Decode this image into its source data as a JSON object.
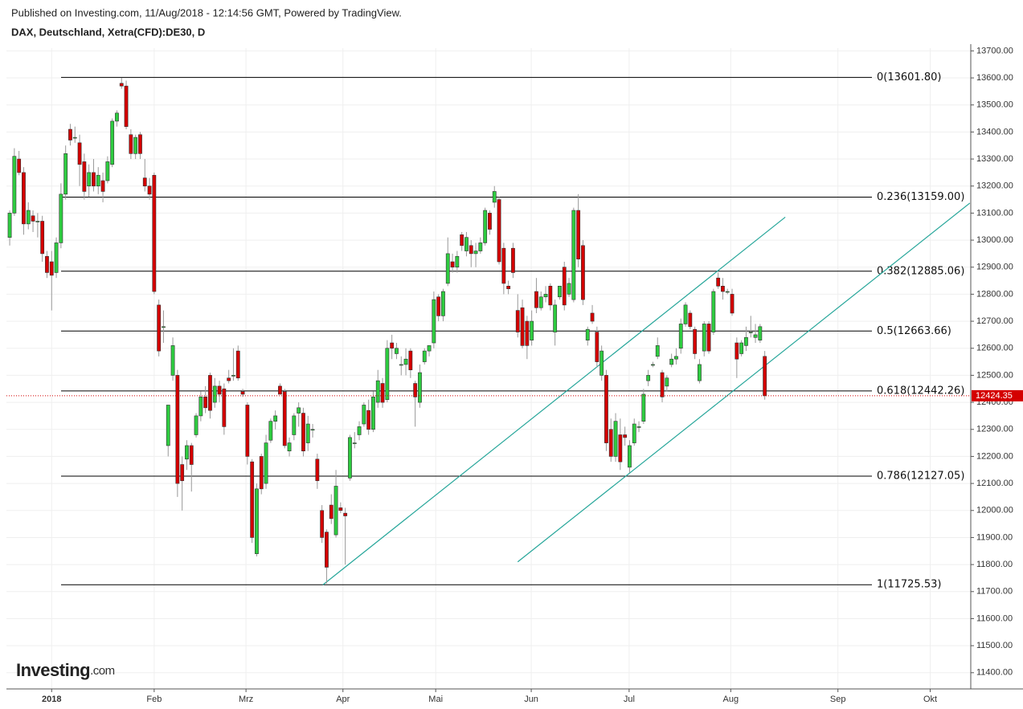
{
  "header": {
    "published": "Published on Investing.com, 11/Aug/2018 - 12:14:56 GMT, Powered by TradingView.",
    "symbol": "DAX, Deutschland, Xetra(CFD):DE30, D"
  },
  "logo": {
    "name": "Investing",
    "suffix": ".com"
  },
  "chart_data": {
    "type": "candlestick",
    "up_color": "#2ecc40",
    "down_color": "#d40000",
    "grid": true,
    "ylim": [
      11340,
      13710
    ],
    "xlim": [
      -0.7,
      206.2
    ],
    "yticks": [
      {
        "value": 11400,
        "label": "11400.00"
      },
      {
        "value": 11500,
        "label": "11500.00"
      },
      {
        "value": 11600,
        "label": "11600.00"
      },
      {
        "value": 11700,
        "label": "11700.00"
      },
      {
        "value": 11800,
        "label": "11800.00"
      },
      {
        "value": 11900,
        "label": "11900.00"
      },
      {
        "value": 12000,
        "label": "12000.00"
      },
      {
        "value": 12100,
        "label": "12100.00"
      },
      {
        "value": 12200,
        "label": "12200.00"
      },
      {
        "value": 12300,
        "label": "12300.00"
      },
      {
        "value": 12400,
        "label": "12400.00"
      },
      {
        "value": 12500,
        "label": "12500.00"
      },
      {
        "value": 12600,
        "label": "12600.00"
      },
      {
        "value": 12700,
        "label": "12700.00"
      },
      {
        "value": 12800,
        "label": "12800.00"
      },
      {
        "value": 12900,
        "label": "12900.00"
      },
      {
        "value": 13000,
        "label": "13000.00"
      },
      {
        "value": 13100,
        "label": "13100.00"
      },
      {
        "value": 13200,
        "label": "13200.00"
      },
      {
        "value": 13300,
        "label": "13300.00"
      },
      {
        "value": 13400,
        "label": "13400.00"
      },
      {
        "value": 13500,
        "label": "13500.00"
      },
      {
        "value": 13600,
        "label": "13600.00"
      },
      {
        "value": 13700,
        "label": "13700.00"
      }
    ],
    "xticks": [
      {
        "value": 9,
        "label": "2018"
      },
      {
        "value": 31,
        "label": "Feb"
      },
      {
        "value": 50.7,
        "label": "Mrz"
      },
      {
        "value": 71.5,
        "label": "Apr"
      },
      {
        "value": 91.4,
        "label": "Mai"
      },
      {
        "value": 111.9,
        "label": "Jun"
      },
      {
        "value": 132.9,
        "label": "Jul"
      },
      {
        "value": 154.7,
        "label": "Aug"
      },
      {
        "value": 177.7,
        "label": "Sep"
      },
      {
        "value": 197.5,
        "label": "Okt"
      }
    ],
    "fib_levels": [
      {
        "value": 13601.8,
        "label": "0(13601.80)"
      },
      {
        "value": 13159.0,
        "label": "0.236(13159.00)"
      },
      {
        "value": 12885.06,
        "label": "0.382(12885.06)"
      },
      {
        "value": 12663.66,
        "label": "0.5(12663.66)"
      },
      {
        "value": 12442.26,
        "label": "0.618(12442.26)"
      },
      {
        "value": 12127.05,
        "label": "0.786(12127.05)"
      },
      {
        "value": 11725.53,
        "label": "1(11725.53)"
      }
    ],
    "trend_lines": [
      {
        "x": [
          67.2,
          166.4
        ],
        "y": [
          11725,
          13085
        ]
      },
      {
        "x": [
          109,
          206
        ],
        "y": [
          11810,
          13137
        ]
      }
    ],
    "last_price": 12424.35,
    "ohlc": [
      [
        13010,
        13110,
        12980,
        13100
      ],
      [
        13100,
        13340,
        13090,
        13310
      ],
      [
        13300,
        13330,
        13240,
        13250
      ],
      [
        13250,
        13270,
        13020,
        13060
      ],
      [
        13060,
        13140,
        13040,
        13110
      ],
      [
        13090,
        13110,
        13030,
        13070
      ],
      [
        13070,
        13100,
        13010,
        13070
      ],
      [
        13070,
        13090,
        12920,
        12950
      ],
      [
        12940,
        12960,
        12860,
        12880
      ],
      [
        12920,
        12960,
        12740,
        12870
      ],
      [
        12880,
        13010,
        12860,
        12990
      ],
      [
        12990,
        13210,
        12970,
        13170
      ],
      [
        13170,
        13350,
        13150,
        13320
      ],
      [
        13410,
        13430,
        13350,
        13370
      ],
      [
        13380,
        13420,
        13360,
        13380
      ],
      [
        13360,
        13390,
        13200,
        13280
      ],
      [
        13290,
        13320,
        13150,
        13180
      ],
      [
        13200,
        13280,
        13160,
        13250
      ],
      [
        13250,
        13300,
        13180,
        13200
      ],
      [
        13200,
        13270,
        13170,
        13240
      ],
      [
        13220,
        13250,
        13140,
        13180
      ],
      [
        13220,
        13310,
        13210,
        13290
      ],
      [
        13280,
        13450,
        13270,
        13440
      ],
      [
        13440,
        13480,
        13420,
        13470
      ],
      [
        13580,
        13600,
        13560,
        13570
      ],
      [
        13570,
        13590,
        13410,
        13420
      ],
      [
        13390,
        13410,
        13300,
        13320
      ],
      [
        13320,
        13390,
        13300,
        13380
      ],
      [
        13390,
        13400,
        13300,
        13320
      ],
      [
        13230,
        13300,
        13180,
        13200
      ],
      [
        13200,
        13230,
        13150,
        13170
      ],
      [
        13240,
        13250,
        12800,
        12810
      ],
      [
        12760,
        12780,
        12570,
        12590
      ],
      [
        12680,
        12740,
        12620,
        12680
      ],
      [
        12240,
        12390,
        12200,
        12390
      ],
      [
        12500,
        12640,
        12480,
        12610
      ],
      [
        12500,
        12520,
        12050,
        12100
      ],
      [
        12170,
        12200,
        12000,
        12110
      ],
      [
        12190,
        12260,
        12150,
        12240
      ],
      [
        12240,
        12250,
        12070,
        12170
      ],
      [
        12280,
        12360,
        12270,
        12350
      ],
      [
        12350,
        12440,
        12330,
        12420
      ],
      [
        12420,
        12460,
        12360,
        12380
      ],
      [
        12500,
        12510,
        12340,
        12370
      ],
      [
        12400,
        12490,
        12380,
        12460
      ],
      [
        12460,
        12480,
        12400,
        12430
      ],
      [
        12450,
        12470,
        12280,
        12310
      ],
      [
        12490,
        12520,
        12470,
        12480
      ],
      [
        12500,
        12600,
        12480,
        12500
      ],
      [
        12590,
        12610,
        12480,
        12490
      ],
      [
        12440,
        12450,
        12420,
        12430
      ],
      [
        12390,
        12400,
        12170,
        12200
      ],
      [
        12180,
        12190,
        11880,
        11900
      ],
      [
        11840,
        12100,
        11830,
        12080
      ],
      [
        12200,
        12210,
        12060,
        12080
      ],
      [
        12100,
        12280,
        12080,
        12250
      ],
      [
        12260,
        12340,
        12250,
        12330
      ],
      [
        12330,
        12370,
        12300,
        12350
      ],
      [
        12460,
        12470,
        12430,
        12430
      ],
      [
        12440,
        12450,
        12230,
        12240
      ],
      [
        12220,
        12270,
        12200,
        12250
      ],
      [
        12280,
        12360,
        12260,
        12350
      ],
      [
        12360,
        12400,
        12310,
        12380
      ],
      [
        12360,
        12380,
        12200,
        12220
      ],
      [
        12250,
        12350,
        12220,
        12320
      ],
      [
        12300,
        12320,
        12270,
        12300
      ],
      [
        12190,
        12210,
        12080,
        12110
      ],
      [
        12000,
        12020,
        11880,
        11900
      ],
      [
        11920,
        11930,
        11730,
        11790
      ],
      [
        12020,
        12060,
        11950,
        11970
      ],
      [
        11910,
        12150,
        11900,
        12090
      ],
      [
        12010,
        12030,
        11990,
        12000
      ],
      [
        11990,
        12010,
        11800,
        11980
      ],
      [
        12120,
        12280,
        12110,
        12270
      ],
      [
        12250,
        12290,
        12230,
        12250
      ],
      [
        12280,
        12330,
        12260,
        12310
      ],
      [
        12320,
        12400,
        12310,
        12390
      ],
      [
        12370,
        12410,
        12280,
        12300
      ],
      [
        12300,
        12440,
        12290,
        12420
      ],
      [
        12400,
        12520,
        12380,
        12480
      ],
      [
        12470,
        12490,
        12380,
        12400
      ],
      [
        12410,
        12630,
        12400,
        12600
      ],
      [
        12620,
        12650,
        12560,
        12600
      ],
      [
        12580,
        12620,
        12560,
        12600
      ],
      [
        12540,
        12570,
        12500,
        12540
      ],
      [
        12540,
        12600,
        12500,
        12560
      ],
      [
        12590,
        12600,
        12490,
        12520
      ],
      [
        12470,
        12480,
        12310,
        12420
      ],
      [
        12400,
        12540,
        12380,
        12510
      ],
      [
        12550,
        12600,
        12540,
        12590
      ],
      [
        12590,
        12610,
        12570,
        12610
      ],
      [
        12620,
        12810,
        12600,
        12780
      ],
      [
        12790,
        12800,
        12700,
        12720
      ],
      [
        12720,
        12820,
        12700,
        12810
      ],
      [
        12840,
        13010,
        12830,
        12950
      ],
      [
        12920,
        12950,
        12880,
        12900
      ],
      [
        12900,
        12960,
        12880,
        12940
      ],
      [
        13020,
        13030,
        12960,
        12980
      ],
      [
        12960,
        13030,
        12940,
        13010
      ],
      [
        12980,
        13000,
        12900,
        12950
      ],
      [
        12950,
        12990,
        12900,
        12960
      ],
      [
        12960,
        13010,
        12950,
        12990
      ],
      [
        12990,
        13120,
        12980,
        13110
      ],
      [
        13100,
        13110,
        13020,
        13040
      ],
      [
        13140,
        13200,
        13120,
        13180
      ],
      [
        13150,
        13160,
        12910,
        12920
      ],
      [
        12970,
        12990,
        12800,
        12840
      ],
      [
        12830,
        12850,
        12800,
        12820
      ],
      [
        12970,
        12990,
        12860,
        12880
      ],
      [
        12740,
        12800,
        12640,
        12660
      ],
      [
        12750,
        12780,
        12600,
        12610
      ],
      [
        12700,
        12720,
        12560,
        12610
      ],
      [
        12630,
        12740,
        12610,
        12700
      ],
      [
        12810,
        12860,
        12730,
        12750
      ],
      [
        12750,
        12810,
        12740,
        12790
      ],
      [
        12790,
        12830,
        12770,
        12800
      ],
      [
        12830,
        12840,
        12740,
        12760
      ],
      [
        12660,
        12780,
        12610,
        12760
      ],
      [
        12790,
        12830,
        12780,
        12830
      ],
      [
        12900,
        12920,
        12740,
        12760
      ],
      [
        12800,
        12860,
        12790,
        12840
      ],
      [
        12780,
        13120,
        12770,
        13110
      ],
      [
        13110,
        13170,
        12900,
        12930
      ],
      [
        12980,
        13000,
        12760,
        12780
      ],
      [
        12630,
        12680,
        12610,
        12670
      ],
      [
        12730,
        12760,
        12690,
        12700
      ],
      [
        12660,
        12680,
        12530,
        12550
      ],
      [
        12500,
        12610,
        12480,
        12590
      ],
      [
        12500,
        12520,
        12220,
        12250
      ],
      [
        12300,
        12340,
        12180,
        12200
      ],
      [
        12200,
        12360,
        12180,
        12330
      ],
      [
        12280,
        12340,
        12150,
        12180
      ],
      [
        12280,
        12310,
        12240,
        12270
      ],
      [
        12160,
        12260,
        12140,
        12240
      ],
      [
        12250,
        12340,
        12240,
        12320
      ],
      [
        12310,
        12330,
        12290,
        12310
      ],
      [
        12330,
        12450,
        12320,
        12430
      ],
      [
        12480,
        12520,
        12460,
        12500
      ],
      [
        12540,
        12550,
        12530,
        12540
      ],
      [
        12570,
        12640,
        12560,
        12610
      ],
      [
        12510,
        12520,
        12400,
        12420
      ],
      [
        12460,
        12500,
        12440,
        12490
      ],
      [
        12540,
        12580,
        12530,
        12560
      ],
      [
        12560,
        12600,
        12540,
        12570
      ],
      [
        12600,
        12710,
        12580,
        12690
      ],
      [
        12690,
        12770,
        12680,
        12760
      ],
      [
        12730,
        12740,
        12670,
        12680
      ],
      [
        12670,
        12680,
        12560,
        12580
      ],
      [
        12480,
        12560,
        12470,
        12540
      ],
      [
        12590,
        12700,
        12570,
        12690
      ],
      [
        12690,
        12700,
        12580,
        12590
      ],
      [
        12660,
        12820,
        12650,
        12810
      ],
      [
        12860,
        12880,
        12820,
        12830
      ],
      [
        12830,
        12860,
        12780,
        12810
      ],
      [
        12810,
        12820,
        12800,
        12810
      ],
      [
        12800,
        12820,
        12720,
        12730
      ],
      [
        12620,
        12640,
        12490,
        12560
      ],
      [
        12580,
        12630,
        12570,
        12620
      ],
      [
        12610,
        12680,
        12590,
        12640
      ],
      [
        12660,
        12720,
        12640,
        12660
      ],
      [
        12640,
        12690,
        12620,
        12650
      ],
      [
        12630,
        12690,
        12620,
        12680
      ],
      [
        12570,
        12590,
        12410,
        12424.35
      ]
    ]
  }
}
